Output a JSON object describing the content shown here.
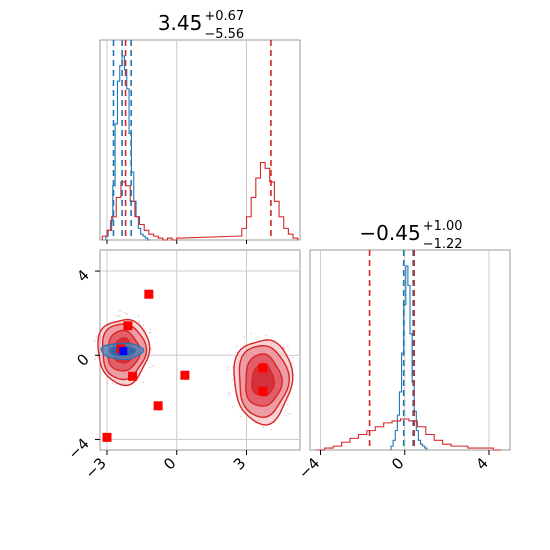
{
  "chart_data": [
    {
      "panel": "marginal-x",
      "type": "histogram",
      "title": {
        "value": "3.45",
        "upper": "+0.67",
        "lower": "−5.56"
      },
      "xlim": [
        -3.3,
        5.3
      ],
      "series": [
        {
          "name": "",
          "color": "#1f77b4",
          "x": [
            -3.0,
            -2.9,
            -2.8,
            -2.7,
            -2.6,
            -2.5,
            -2.4,
            -2.3,
            -2.2,
            -2.1,
            -2.0,
            -1.9,
            -1.8,
            -1.7,
            -1.6,
            -1.5,
            -1.4,
            -1.3,
            -1.2
          ],
          "values": [
            0.02,
            0.05,
            0.1,
            0.28,
            0.6,
            0.82,
            0.9,
            0.95,
            0.88,
            0.78,
            0.55,
            0.35,
            0.2,
            0.12,
            0.06,
            0.03,
            0.02,
            0.01,
            0.0
          ]
        },
        {
          "name": "",
          "color": "#d62728",
          "x": [
            -3.1,
            -2.9,
            -2.7,
            -2.5,
            -2.3,
            -2.1,
            -1.9,
            -1.7,
            -1.5,
            -1.3,
            -1.1,
            -0.9,
            -0.7,
            -0.5,
            -0.3,
            -0.1,
            0.1,
            2.7,
            2.9,
            3.1,
            3.3,
            3.5,
            3.7,
            3.9,
            4.1,
            4.3,
            4.5,
            4.7,
            4.9,
            5.1
          ],
          "values": [
            0.02,
            0.05,
            0.12,
            0.22,
            0.3,
            0.28,
            0.2,
            0.12,
            0.08,
            0.05,
            0.03,
            0.02,
            0.01,
            0.0,
            0.01,
            0.0,
            0.01,
            0.02,
            0.06,
            0.12,
            0.22,
            0.32,
            0.4,
            0.37,
            0.3,
            0.2,
            0.12,
            0.06,
            0.03,
            0.01
          ]
        }
      ],
      "vlines": [
        {
          "x": -2.72,
          "color": "#1f77b4"
        },
        {
          "x": -2.35,
          "color": "#1f77b4"
        },
        {
          "x": -1.96,
          "color": "#1f77b4"
        },
        {
          "x": -2.2,
          "color": "#d62728"
        },
        {
          "x": 4.05,
          "color": "#d62728"
        }
      ]
    },
    {
      "panel": "joint",
      "type": "scatter",
      "xlim": [
        -3.3,
        5.3
      ],
      "ylim": [
        -4.5,
        5.0
      ],
      "xticks": [
        "-3",
        "0",
        "3"
      ],
      "xtick_values": [
        -3,
        0,
        3
      ],
      "yticks": [
        "4",
        "0",
        "-4"
      ],
      "ytick_values": [
        4,
        0,
        -4
      ],
      "contours": [
        {
          "color": "#d62728",
          "cx": -2.3,
          "cy": 0.2,
          "rx": 1.1,
          "ry": 1.55,
          "levels": [
            1.0,
            0.85,
            0.62,
            0.38
          ]
        },
        {
          "color": "#d62728",
          "cx": 3.7,
          "cy": -1.2,
          "rx": 1.25,
          "ry": 2.0,
          "levels": [
            1.0,
            0.85,
            0.62,
            0.38
          ]
        },
        {
          "color": "#1f77b4",
          "cx": -2.35,
          "cy": 0.2,
          "rx": 0.9,
          "ry": 0.38,
          "levels": [
            1.0,
            0.6
          ]
        }
      ],
      "markers_red": [
        [
          -2.1,
          1.4
        ],
        [
          -1.2,
          2.9
        ],
        [
          -2.4,
          0.3
        ],
        [
          -1.9,
          -1.0
        ],
        [
          0.35,
          -0.95
        ],
        [
          -0.8,
          -2.4
        ],
        [
          3.7,
          -0.6
        ],
        [
          3.7,
          -1.7
        ],
        [
          -3.0,
          -3.9
        ]
      ],
      "markers_blue": [
        [
          -2.3,
          0.2
        ]
      ]
    },
    {
      "panel": "marginal-y",
      "type": "histogram",
      "title": {
        "value": "−0.45",
        "upper": "+1.00",
        "lower": "−1.22"
      },
      "xlim": [
        -4.5,
        5.0
      ],
      "xticks": [
        "-4",
        "0",
        "4"
      ],
      "xtick_values": [
        -4,
        0,
        4
      ],
      "series": [
        {
          "name": "",
          "color": "#1f77b4",
          "x": [
            -0.6,
            -0.5,
            -0.4,
            -0.3,
            -0.2,
            -0.1,
            0.0,
            0.1,
            0.2,
            0.3,
            0.4,
            0.5,
            0.6,
            0.7,
            0.8,
            0.9,
            1.0
          ],
          "values": [
            0.02,
            0.05,
            0.1,
            0.18,
            0.3,
            0.5,
            0.75,
            0.95,
            0.85,
            0.6,
            0.35,
            0.2,
            0.1,
            0.05,
            0.03,
            0.02,
            0.01
          ]
        },
        {
          "name": "",
          "color": "#d62728",
          "x": [
            -4.0,
            -3.6,
            -3.2,
            -2.8,
            -2.4,
            -2.0,
            -1.6,
            -1.2,
            -0.8,
            -0.4,
            0.0,
            0.4,
            0.8,
            1.2,
            1.6,
            2.0,
            2.4,
            2.8,
            3.2,
            3.6,
            4.0,
            4.4
          ],
          "values": [
            0.0,
            0.01,
            0.02,
            0.04,
            0.06,
            0.08,
            0.1,
            0.12,
            0.14,
            0.15,
            0.16,
            0.15,
            0.12,
            0.08,
            0.05,
            0.03,
            0.02,
            0.02,
            0.01,
            0.01,
            0.01,
            0.0
          ]
        }
      ],
      "vlines": [
        {
          "x": -1.67,
          "color": "#d62728"
        },
        {
          "x": -0.05,
          "color": "#1f77b4"
        },
        {
          "x": 0.4,
          "color": "#1f77b4"
        },
        {
          "x": 0.45,
          "color": "#d62728"
        }
      ]
    }
  ]
}
